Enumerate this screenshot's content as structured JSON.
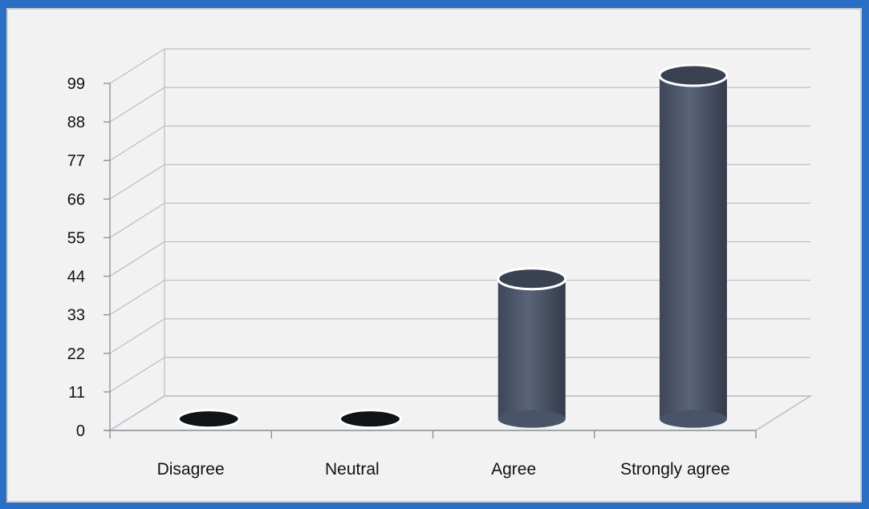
{
  "chart_data": {
    "type": "bar",
    "style": "3d-cylinder",
    "categories": [
      "Disagree",
      "Neutral",
      "Agree",
      "Strongly agree"
    ],
    "values": [
      0,
      0,
      40,
      98
    ],
    "ylim": [
      0,
      99
    ],
    "yticks": [
      "0",
      "11",
      "22",
      "33",
      "44",
      "55",
      "66",
      "77",
      "88",
      "99"
    ],
    "title": "",
    "xlabel": "",
    "ylabel": "",
    "grid": true,
    "legend": "none",
    "colors": {
      "bar_body": "#4a5468",
      "bar_top": "#3a4252",
      "zero_disc": "#101418",
      "grid": "#b9bec8",
      "background": "#f1f2f1",
      "frame": "#2b6fc4"
    }
  }
}
